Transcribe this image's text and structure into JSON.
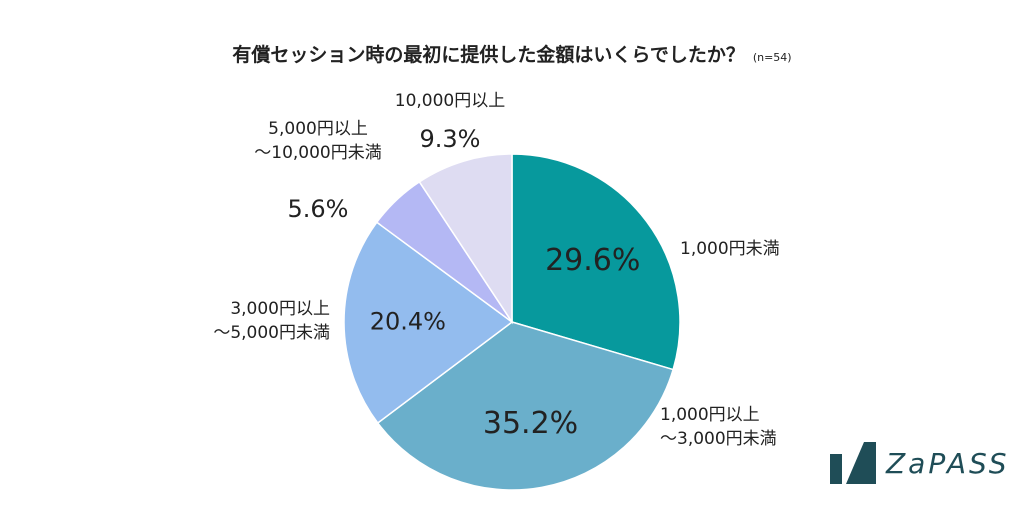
{
  "title": "有償セッション時の最初に提供した金額はいくらでしたか？",
  "sample_size": "(n=54)",
  "logo_text": "ZaPASS",
  "chart_data": {
    "type": "pie",
    "title": "有償セッション時の最初に提供した金額はいくらでしたか？",
    "start_angle_deg": 0,
    "direction": "clockwise",
    "slices": [
      {
        "label_lines": [
          "1,000円未満"
        ],
        "value": 29.6,
        "value_text": "29.6%",
        "color": "#07999d",
        "text_color": "#ffffff"
      },
      {
        "label_lines": [
          "1,000円以上",
          "〜3,000円未満"
        ],
        "value": 35.2,
        "value_text": "35.2%",
        "color": "#6aafcb",
        "text_color": "#ffffff"
      },
      {
        "label_lines": [
          "3,000円以上",
          "〜5,000円未満"
        ],
        "value": 20.4,
        "value_text": "20.4%",
        "color": "#93bcee",
        "text_color": "#222222"
      },
      {
        "label_lines": [
          "5,000円以上",
          "〜10,000円未満"
        ],
        "value": 5.6,
        "value_text": "5.6%",
        "color": "#b4b8f4",
        "text_color": "#222222"
      },
      {
        "label_lines": [
          "10,000円以上"
        ],
        "value": 9.3,
        "value_text": "9.3%",
        "color": "#dedcf2",
        "text_color": "#222222"
      }
    ]
  }
}
